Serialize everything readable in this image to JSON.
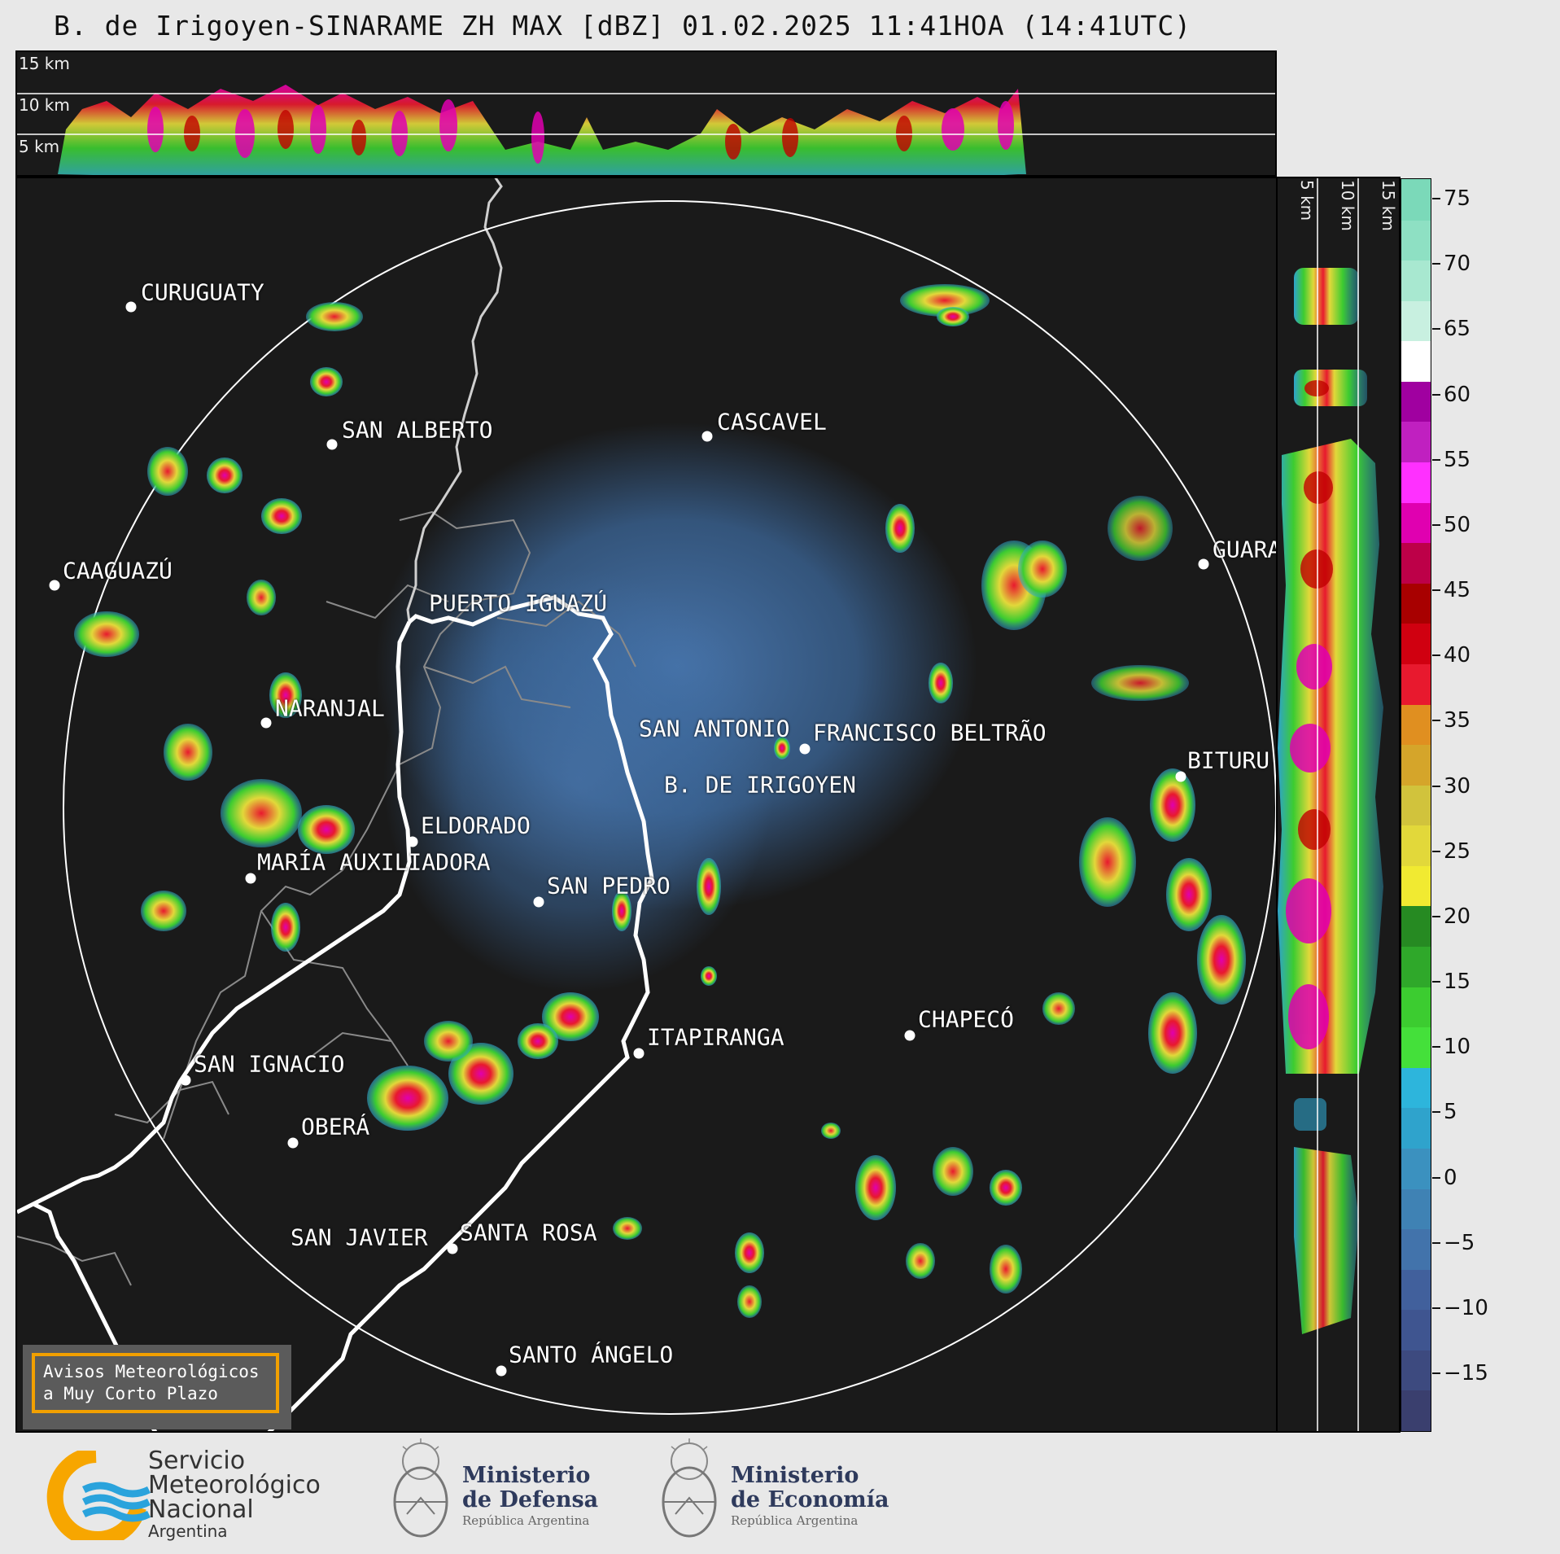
{
  "title": "B. de Irigoyen-SINARAME ZH MAX [dBZ] 01.02.2025 11:41HOA (14:41UTC)",
  "top_panel": {
    "height_labels": [
      "15 km",
      "10 km",
      "5 km"
    ]
  },
  "side_panel": {
    "height_labels": [
      "5 km",
      "10 km",
      "15 km"
    ]
  },
  "colorbar": {
    "ticks": [
      "75",
      "70",
      "65",
      "60",
      "55",
      "50",
      "45",
      "40",
      "35",
      "30",
      "25",
      "20",
      "15",
      "10",
      "5",
      "0",
      "−5",
      "−10",
      "−15"
    ],
    "colors": [
      "#3a3f6e",
      "#3d4a7f",
      "#3f5590",
      "#41609c",
      "#4273ab",
      "#3f82b4",
      "#3b91bf",
      "#2fa3cc",
      "#2db5dc",
      "#44e03a",
      "#3ccc30",
      "#2fa82a",
      "#268a22",
      "#f1ea31",
      "#e2d83a",
      "#d1c33c",
      "#d5a52a",
      "#e08f20",
      "#e8192e",
      "#d00010",
      "#a80000",
      "#bd0048",
      "#e000b0",
      "#ff30ff",
      "#c020c0",
      "#a000a0",
      "#ffffff",
      "#c8f0e0",
      "#a8e8d0",
      "#8ee0c3",
      "#7bd9b9"
    ]
  },
  "cities": [
    {
      "name": "CURUGUATY"
    },
    {
      "name": "SAN ALBERTO"
    },
    {
      "name": "CASCAVEL"
    },
    {
      "name": "CAAGUAZÚ"
    },
    {
      "name": "GUARA"
    },
    {
      "name": "PUERTO IGUAZÚ"
    },
    {
      "name": "NARANJAL"
    },
    {
      "name": "SAN ANTONIO"
    },
    {
      "name": "FRANCISCO BELTRÃO"
    },
    {
      "name": "BITURU"
    },
    {
      "name": "B. DE IRIGOYEN"
    },
    {
      "name": "ELDORADO"
    },
    {
      "name": "MARÍA AUXILIADORA"
    },
    {
      "name": "SAN PEDRO"
    },
    {
      "name": "CHAPECÓ"
    },
    {
      "name": "ITAPIRANGA"
    },
    {
      "name": "SAN IGNACIO"
    },
    {
      "name": "OBERÁ"
    },
    {
      "name": "SAN JAVIER"
    },
    {
      "name": "SANTA ROSA"
    },
    {
      "name": "SANTO ÁNGELO"
    }
  ],
  "avisos": {
    "line1": "Avisos Meteorológicos",
    "line2": "a Muy Corto Plazo"
  },
  "footer": {
    "smn_line1": "Servicio",
    "smn_line2": "Meteorológico",
    "smn_line3": "Nacional",
    "smn_line4": "Argentina",
    "defensa_line1": "Ministerio",
    "defensa_line2": "de Defensa",
    "defensa_line3": "República Argentina",
    "economia_line1": "Ministerio",
    "economia_line2": "de Economía",
    "economia_line3": "República Argentina"
  }
}
